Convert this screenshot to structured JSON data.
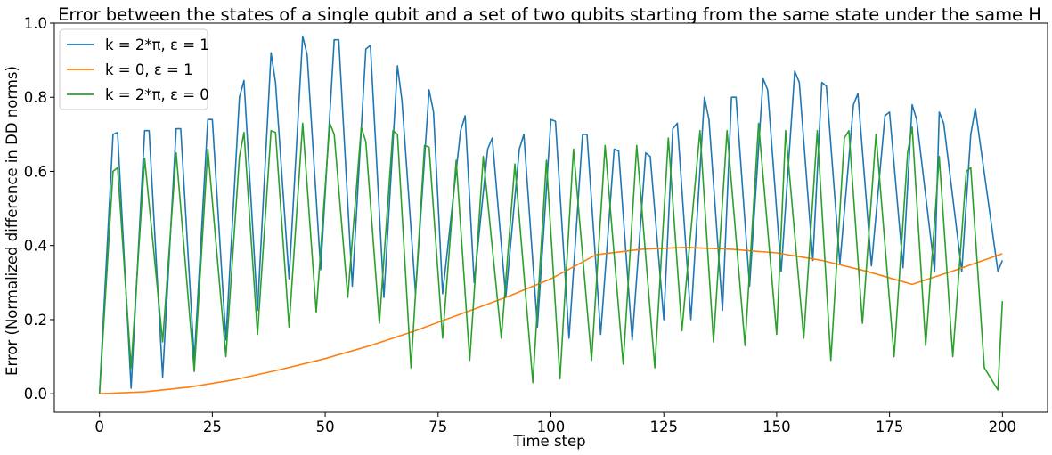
{
  "chart_data": {
    "type": "line",
    "title": "Error between the states of a single qubit and a set of two qubits starting from the same state under the same H",
    "xlabel": "Time step",
    "ylabel": "Error (Normalized difference in DD norms)",
    "xlim": [
      -10,
      210
    ],
    "ylim": [
      -0.05,
      1.0
    ],
    "xticks": [
      0,
      25,
      50,
      75,
      100,
      125,
      150,
      175,
      200
    ],
    "yticks": [
      0.0,
      0.2,
      0.4,
      0.6,
      0.8,
      1.0
    ],
    "xtick_labels": [
      "0",
      "25",
      "50",
      "75",
      "100",
      "125",
      "150",
      "175",
      "200"
    ],
    "ytick_labels": [
      "0.0",
      "0.2",
      "0.4",
      "0.6",
      "0.8",
      "1.0"
    ],
    "grid": false,
    "legend_position": "top-left",
    "series": [
      {
        "name": "k = 2*π, ε = 1",
        "color": "#1f77b4",
        "peaks": [
          [
            3,
            0.7
          ],
          [
            4,
            0.705
          ],
          [
            10,
            0.71
          ],
          [
            11,
            0.71
          ],
          [
            17,
            0.715
          ],
          [
            18,
            0.715
          ],
          [
            24,
            0.74
          ],
          [
            25,
            0.74
          ],
          [
            31,
            0.8
          ],
          [
            32,
            0.845
          ],
          [
            38,
            0.92
          ],
          [
            39,
            0.84
          ],
          [
            45,
            0.965
          ],
          [
            46,
            0.915
          ],
          [
            52,
            0.955
          ],
          [
            53,
            0.955
          ],
          [
            59,
            0.93
          ],
          [
            60,
            0.94
          ],
          [
            66,
            0.885
          ],
          [
            67,
            0.79
          ],
          [
            73,
            0.82
          ],
          [
            74,
            0.76
          ],
          [
            80,
            0.71
          ],
          [
            81,
            0.75
          ],
          [
            86,
            0.66
          ],
          [
            87,
            0.69
          ],
          [
            93,
            0.66
          ],
          [
            94,
            0.7
          ],
          [
            100,
            0.74
          ],
          [
            101,
            0.735
          ],
          [
            107,
            0.7
          ],
          [
            108,
            0.7
          ],
          [
            114,
            0.66
          ],
          [
            115,
            0.655
          ],
          [
            121,
            0.65
          ],
          [
            122,
            0.64
          ],
          [
            127,
            0.715
          ],
          [
            128,
            0.73
          ],
          [
            134,
            0.8
          ],
          [
            135,
            0.74
          ],
          [
            140,
            0.8
          ],
          [
            141,
            0.8
          ],
          [
            147,
            0.85
          ],
          [
            148,
            0.82
          ],
          [
            154,
            0.87
          ],
          [
            155,
            0.84
          ],
          [
            160,
            0.84
          ],
          [
            161,
            0.83
          ],
          [
            167,
            0.78
          ],
          [
            168,
            0.81
          ],
          [
            174,
            0.75
          ],
          [
            175,
            0.76
          ],
          [
            180,
            0.78
          ],
          [
            181,
            0.74
          ],
          [
            186,
            0.76
          ],
          [
            187,
            0.73
          ],
          [
            193,
            0.7
          ],
          [
            194,
            0.77
          ],
          [
            199,
            0.33
          ],
          [
            200,
            0.36
          ]
        ],
        "troughs": [
          [
            0,
            0.0
          ],
          [
            7,
            0.015
          ],
          [
            14,
            0.045
          ],
          [
            21,
            0.09
          ],
          [
            28,
            0.145
          ],
          [
            35,
            0.225
          ],
          [
            42,
            0.31
          ],
          [
            49,
            0.335
          ],
          [
            56,
            0.29
          ],
          [
            63,
            0.26
          ],
          [
            70,
            0.27
          ],
          [
            76,
            0.27
          ],
          [
            83,
            0.3
          ],
          [
            90,
            0.26
          ],
          [
            97,
            0.18
          ],
          [
            104,
            0.15
          ],
          [
            111,
            0.16
          ],
          [
            118,
            0.145
          ],
          [
            125,
            0.2
          ],
          [
            131,
            0.2
          ],
          [
            138,
            0.225
          ],
          [
            144,
            0.29
          ],
          [
            151,
            0.33
          ],
          [
            158,
            0.36
          ],
          [
            164,
            0.35
          ],
          [
            171,
            0.345
          ],
          [
            178,
            0.34
          ],
          [
            185,
            0.33
          ],
          [
            191,
            0.33
          ],
          [
            199,
            0.33
          ]
        ]
      },
      {
        "name": "k = 0, ε = 1",
        "color": "#ff7f0e",
        "points": [
          [
            0,
            0.0
          ],
          [
            10,
            0.005
          ],
          [
            20,
            0.018
          ],
          [
            30,
            0.038
          ],
          [
            40,
            0.065
          ],
          [
            50,
            0.095
          ],
          [
            60,
            0.13
          ],
          [
            70,
            0.17
          ],
          [
            80,
            0.215
          ],
          [
            90,
            0.26
          ],
          [
            100,
            0.31
          ],
          [
            110,
            0.375
          ],
          [
            120,
            0.39
          ],
          [
            130,
            0.395
          ],
          [
            140,
            0.39
          ],
          [
            150,
            0.38
          ],
          [
            160,
            0.36
          ],
          [
            170,
            0.33
          ],
          [
            180,
            0.295
          ],
          [
            190,
            0.335
          ],
          [
            200,
            0.378
          ]
        ]
      },
      {
        "name": "k = 2*π, ε = 0",
        "color": "#2ca02c",
        "peaks": [
          [
            3,
            0.6
          ],
          [
            4,
            0.61
          ],
          [
            10,
            0.635
          ],
          [
            17,
            0.65
          ],
          [
            24,
            0.66
          ],
          [
            31,
            0.64
          ],
          [
            32,
            0.705
          ],
          [
            38,
            0.71
          ],
          [
            39,
            0.705
          ],
          [
            45,
            0.73
          ],
          [
            51,
            0.73
          ],
          [
            52,
            0.7
          ],
          [
            58,
            0.72
          ],
          [
            59,
            0.68
          ],
          [
            65,
            0.71
          ],
          [
            66,
            0.7
          ],
          [
            72,
            0.67
          ],
          [
            73,
            0.665
          ],
          [
            79,
            0.63
          ],
          [
            85,
            0.64
          ],
          [
            92,
            0.62
          ],
          [
            99,
            0.63
          ],
          [
            105,
            0.66
          ],
          [
            112,
            0.67
          ],
          [
            119,
            0.67
          ],
          [
            126,
            0.69
          ],
          [
            133,
            0.71
          ],
          [
            139,
            0.71
          ],
          [
            146,
            0.73
          ],
          [
            152,
            0.71
          ],
          [
            159,
            0.71
          ],
          [
            165,
            0.69
          ],
          [
            166,
            0.71
          ],
          [
            172,
            0.7
          ],
          [
            179,
            0.65
          ],
          [
            180,
            0.72
          ],
          [
            186,
            0.64
          ],
          [
            192,
            0.6
          ],
          [
            193,
            0.61
          ],
          [
            199,
            0.01
          ],
          [
            200,
            0.25
          ]
        ],
        "troughs": [
          [
            0,
            0.0
          ],
          [
            7,
            0.07
          ],
          [
            14,
            0.14
          ],
          [
            21,
            0.06
          ],
          [
            28,
            0.1
          ],
          [
            35,
            0.16
          ],
          [
            42,
            0.18
          ],
          [
            48,
            0.22
          ],
          [
            55,
            0.26
          ],
          [
            62,
            0.19
          ],
          [
            69,
            0.07
          ],
          [
            76,
            0.15
          ],
          [
            82,
            0.09
          ],
          [
            89,
            0.15
          ],
          [
            96,
            0.03
          ],
          [
            102,
            0.04
          ],
          [
            109,
            0.09
          ],
          [
            116,
            0.08
          ],
          [
            123,
            0.07
          ],
          [
            129,
            0.17
          ],
          [
            136,
            0.14
          ],
          [
            143,
            0.13
          ],
          [
            150,
            0.16
          ],
          [
            156,
            0.15
          ],
          [
            162,
            0.09
          ],
          [
            169,
            0.19
          ],
          [
            176,
            0.1
          ],
          [
            183,
            0.13
          ],
          [
            189,
            0.1
          ],
          [
            196,
            0.07
          ]
        ]
      }
    ]
  }
}
